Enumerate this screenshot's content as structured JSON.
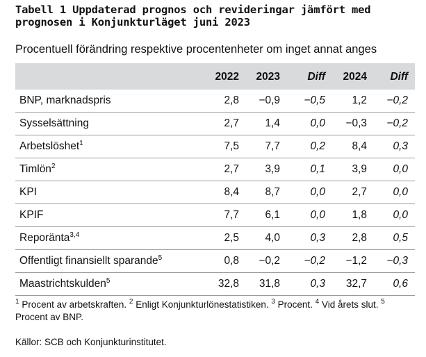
{
  "title": "Tabell 1 Uppdaterad prognos och revideringar jämfört med prognosen i Konjunkturläget juni 2023",
  "subtitle": "Procentuell förändring respektive procentenheter om inget annat anges",
  "columns": [
    "2022",
    "2023",
    "Diff",
    "2024",
    "Diff"
  ],
  "rows": [
    {
      "label": "BNP, marknadspris",
      "sup": "",
      "values": [
        "2,8",
        "−0,9",
        "−0,5",
        "1,2",
        "−0,2"
      ]
    },
    {
      "label": "Sysselsättning",
      "sup": "",
      "values": [
        "2,7",
        "1,4",
        "0,0",
        "−0,3",
        "−0,2"
      ]
    },
    {
      "label": "Arbetslöshet",
      "sup": "1",
      "values": [
        "7,5",
        "7,7",
        "0,2",
        "8,4",
        "0,3"
      ]
    },
    {
      "label": "Timlön",
      "sup": "2",
      "values": [
        "2,7",
        "3,9",
        "0,1",
        "3,9",
        "0,0"
      ]
    },
    {
      "label": "KPI",
      "sup": "",
      "values": [
        "8,4",
        "8,7",
        "0,0",
        "2,7",
        "0,0"
      ]
    },
    {
      "label": "KPIF",
      "sup": "",
      "values": [
        "7,7",
        "6,1",
        "0,0",
        "1,8",
        "0,0"
      ]
    },
    {
      "label": "Reporänta",
      "sup": "3,4",
      "values": [
        "2,5",
        "4,0",
        "0,3",
        "2,8",
        "0,5"
      ]
    },
    {
      "label": "Offentligt finansiellt sparande",
      "sup": "5",
      "values": [
        "0,8",
        "−0,2",
        "−0,2",
        "−1,2",
        "−0,3"
      ]
    },
    {
      "label": "Maastrichtskulden",
      "sup": "5",
      "values": [
        "32,8",
        "31,8",
        "0,3",
        "32,7",
        "0,6"
      ]
    }
  ],
  "footnotes": [
    {
      "sup": "1",
      "text": " Procent av arbetskraften. "
    },
    {
      "sup": "2",
      "text": " Enligt Konjunkturlönestatistiken. "
    },
    {
      "sup": "3",
      "text": " Procent. "
    },
    {
      "sup": "4",
      "text": " Vid årets slut. "
    },
    {
      "sup": "5",
      "text": " Procent av BNP."
    }
  ],
  "source": "Källor: SCB och Konjunkturinstitutet."
}
